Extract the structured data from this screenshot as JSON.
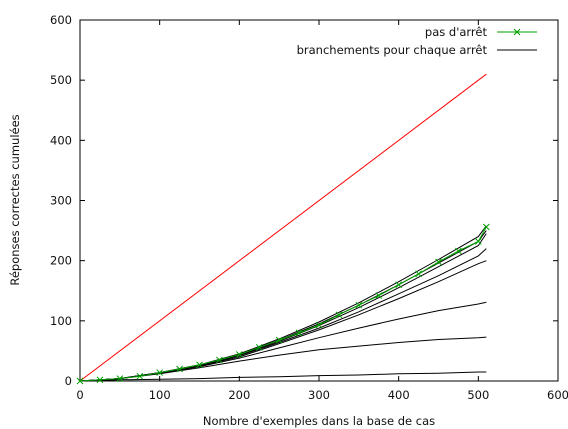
{
  "chart_data": {
    "type": "line",
    "title": "",
    "xlabel": "Nombre d'exemples dans la base de cas",
    "ylabel": "Réponses correctes cumulées",
    "xlim": [
      0,
      600
    ],
    "ylim": [
      0,
      600
    ],
    "xticks": [
      0,
      100,
      200,
      300,
      400,
      500,
      600
    ],
    "yticks": [
      0,
      100,
      200,
      300,
      400,
      500,
      600
    ],
    "grid": false,
    "legend_position": "top-right",
    "series": [
      {
        "name": "",
        "color": "#ff0000",
        "marker": "none",
        "x": [
          0,
          510
        ],
        "y": [
          0,
          510
        ]
      },
      {
        "name": "pas d'arrêt",
        "color": "#00a000",
        "marker": "x",
        "x": [
          0,
          25,
          50,
          75,
          100,
          125,
          150,
          175,
          200,
          225,
          250,
          275,
          300,
          325,
          350,
          375,
          400,
          425,
          450,
          475,
          500,
          510
        ],
        "y": [
          0,
          2,
          4,
          8,
          14,
          20,
          27,
          35,
          44,
          56,
          68,
          80,
          93,
          110,
          126,
          142,
          160,
          178,
          198,
          216,
          232,
          256
        ]
      },
      {
        "name": "branchements pour chaque arrêt",
        "color": "#000000",
        "marker": "none",
        "x": [
          0,
          50,
          100,
          150,
          200,
          250,
          300,
          350,
          400,
          450,
          500,
          510
        ],
        "y": [
          0,
          4,
          14,
          27,
          45,
          70,
          98,
          130,
          165,
          202,
          240,
          258
        ]
      },
      {
        "name": "",
        "color": "#000000",
        "marker": "none",
        "x": [
          0,
          50,
          100,
          150,
          200,
          250,
          300,
          350,
          400,
          450,
          500,
          510
        ],
        "y": [
          0,
          4,
          14,
          26,
          44,
          68,
          95,
          126,
          160,
          196,
          232,
          250
        ]
      },
      {
        "name": "",
        "color": "#000000",
        "marker": "none",
        "x": [
          0,
          50,
          100,
          150,
          200,
          250,
          300,
          350,
          400,
          450,
          500,
          510
        ],
        "y": [
          0,
          4,
          14,
          26,
          43,
          66,
          92,
          122,
          155,
          190,
          225,
          245
        ]
      },
      {
        "name": "",
        "color": "#000000",
        "marker": "none",
        "x": [
          0,
          50,
          100,
          150,
          200,
          250,
          300,
          350,
          400,
          450,
          500,
          510
        ],
        "y": [
          0,
          4,
          13,
          25,
          42,
          64,
          88,
          115,
          145,
          175,
          208,
          220
        ]
      },
      {
        "name": "",
        "color": "#000000",
        "marker": "none",
        "x": [
          0,
          50,
          100,
          150,
          200,
          250,
          300,
          350,
          400,
          450,
          500,
          510
        ],
        "y": [
          0,
          4,
          13,
          25,
          40,
          62,
          85,
          110,
          137,
          165,
          195,
          200
        ]
      },
      {
        "name": "",
        "color": "#000000",
        "marker": "none",
        "x": [
          0,
          50,
          100,
          150,
          200,
          250,
          300,
          350,
          400,
          450,
          500,
          510
        ],
        "y": [
          0,
          4,
          13,
          24,
          38,
          55,
          72,
          88,
          103,
          117,
          128,
          131
        ]
      },
      {
        "name": "",
        "color": "#000000",
        "marker": "none",
        "x": [
          0,
          50,
          100,
          150,
          200,
          250,
          300,
          350,
          400,
          450,
          500,
          510
        ],
        "y": [
          0,
          4,
          12,
          22,
          33,
          43,
          52,
          58,
          64,
          69,
          72,
          73
        ]
      },
      {
        "name": "",
        "color": "#000000",
        "marker": "none",
        "x": [
          0,
          50,
          100,
          150,
          200,
          250,
          300,
          350,
          400,
          450,
          500,
          510
        ],
        "y": [
          0,
          2,
          3,
          4,
          6,
          7,
          9,
          10,
          12,
          13,
          15,
          15
        ]
      }
    ]
  }
}
